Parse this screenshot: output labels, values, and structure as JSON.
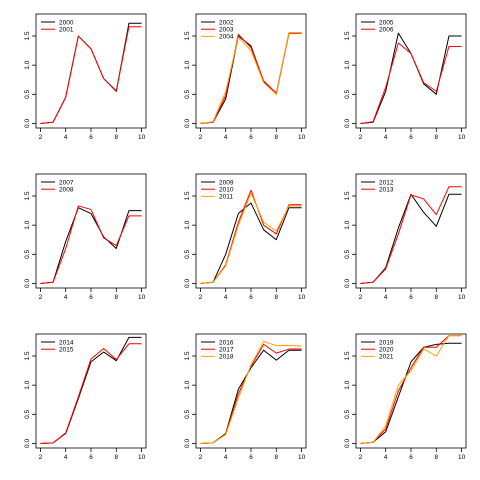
{
  "chart_data": [
    {
      "type": "line",
      "x": [
        2,
        3,
        4,
        5,
        6,
        7,
        8,
        9,
        10
      ],
      "xlim": [
        2,
        10
      ],
      "ylim": [
        0,
        1.8
      ],
      "xticks": [
        2,
        4,
        6,
        8,
        10
      ],
      "yticks": [
        0.0,
        0.5,
        1.0,
        1.5
      ],
      "xtick_labels": [
        "2",
        "4",
        "6",
        "8",
        "10"
      ],
      "ytick_labels": [
        "0.0",
        "0.5",
        "1.0",
        "1.5"
      ],
      "legend": "top-left",
      "grid": false,
      "series": [
        {
          "name": "2000",
          "color": "#000000",
          "values": [
            0,
            0.02,
            0.45,
            1.5,
            1.28,
            0.77,
            0.55,
            1.72,
            1.72
          ]
        },
        {
          "name": "2001",
          "color": "#ff0000",
          "values": [
            0,
            0.02,
            0.45,
            1.5,
            1.28,
            0.77,
            0.56,
            1.66,
            1.66
          ]
        }
      ]
    },
    {
      "type": "line",
      "x": [
        2,
        3,
        4,
        5,
        6,
        7,
        8,
        9,
        10
      ],
      "xlim": [
        2,
        10
      ],
      "ylim": [
        0,
        1.8
      ],
      "xticks": [
        2,
        4,
        6,
        8,
        10
      ],
      "yticks": [
        0.0,
        0.5,
        1.0,
        1.5
      ],
      "xtick_labels": [
        "2",
        "4",
        "6",
        "8",
        "10"
      ],
      "ytick_labels": [
        "0.0",
        "0.5",
        "1.0",
        "1.5"
      ],
      "legend": "top-left",
      "grid": false,
      "series": [
        {
          "name": "2002",
          "color": "#000000",
          "values": [
            0,
            0.02,
            0.42,
            1.5,
            1.33,
            0.72,
            0.5,
            1.55,
            1.55
          ]
        },
        {
          "name": "2003",
          "color": "#ff0000",
          "values": [
            0,
            0.02,
            0.48,
            1.53,
            1.3,
            0.73,
            0.52,
            1.55,
            1.55
          ]
        },
        {
          "name": "2004",
          "color": "#ffa500",
          "values": [
            0,
            0.03,
            0.55,
            1.48,
            1.25,
            0.7,
            0.5,
            1.56,
            1.56
          ]
        }
      ]
    },
    {
      "type": "line",
      "x": [
        2,
        3,
        4,
        5,
        6,
        7,
        8,
        9,
        10
      ],
      "xlim": [
        2,
        10
      ],
      "ylim": [
        0,
        1.8
      ],
      "xticks": [
        2,
        4,
        6,
        8,
        10
      ],
      "yticks": [
        0.0,
        0.5,
        1.0,
        1.5
      ],
      "xtick_labels": [
        "2",
        "4",
        "6",
        "8",
        "10"
      ],
      "ytick_labels": [
        "0.0",
        "0.5",
        "1.0",
        "1.5"
      ],
      "legend": "top-left",
      "grid": false,
      "series": [
        {
          "name": "2005",
          "color": "#000000",
          "values": [
            0,
            0.02,
            0.55,
            1.55,
            1.2,
            0.68,
            0.5,
            1.5,
            1.5
          ]
        },
        {
          "name": "2006",
          "color": "#ff0000",
          "values": [
            0,
            0.03,
            0.62,
            1.38,
            1.2,
            0.7,
            0.55,
            1.32,
            1.32
          ]
        }
      ]
    },
    {
      "type": "line",
      "x": [
        2,
        3,
        4,
        5,
        6,
        7,
        8,
        9,
        10
      ],
      "xlim": [
        2,
        10
      ],
      "ylim": [
        0,
        1.8
      ],
      "xticks": [
        2,
        4,
        6,
        8,
        10
      ],
      "yticks": [
        0.0,
        0.5,
        1.0,
        1.5
      ],
      "xtick_labels": [
        "2",
        "4",
        "6",
        "8",
        "10"
      ],
      "ytick_labels": [
        "0.0",
        "0.5",
        "1.0",
        "1.5"
      ],
      "legend": "top-left",
      "grid": false,
      "series": [
        {
          "name": "2007",
          "color": "#000000",
          "values": [
            0,
            0.02,
            0.72,
            1.3,
            1.2,
            0.8,
            0.6,
            1.25,
            1.25
          ]
        },
        {
          "name": "2008",
          "color": "#ff0000",
          "values": [
            0,
            0.02,
            0.6,
            1.33,
            1.27,
            0.78,
            0.65,
            1.16,
            1.16
          ]
        }
      ]
    },
    {
      "type": "line",
      "x": [
        2,
        3,
        4,
        5,
        6,
        7,
        8,
        9,
        10
      ],
      "xlim": [
        2,
        10
      ],
      "ylim": [
        0,
        1.8
      ],
      "xticks": [
        2,
        4,
        6,
        8,
        10
      ],
      "yticks": [
        0.0,
        0.5,
        1.0,
        1.5
      ],
      "xtick_labels": [
        "2",
        "4",
        "6",
        "8",
        "10"
      ],
      "ytick_labels": [
        "0.0",
        "0.5",
        "1.0",
        "1.5"
      ],
      "legend": "top-left",
      "grid": false,
      "series": [
        {
          "name": "2009",
          "color": "#000000",
          "values": [
            0,
            0.02,
            0.5,
            1.2,
            1.38,
            0.92,
            0.75,
            1.3,
            1.3
          ]
        },
        {
          "name": "2010",
          "color": "#ff0000",
          "values": [
            0,
            0.02,
            0.32,
            1.05,
            1.6,
            1.0,
            0.85,
            1.35,
            1.35
          ]
        },
        {
          "name": "2011",
          "color": "#ffa500",
          "values": [
            0,
            0.02,
            0.3,
            1.0,
            1.55,
            1.05,
            0.9,
            1.33,
            1.33
          ]
        }
      ]
    },
    {
      "type": "line",
      "x": [
        2,
        3,
        4,
        5,
        6,
        7,
        8,
        9,
        10
      ],
      "xlim": [
        2,
        10
      ],
      "ylim": [
        0,
        1.8
      ],
      "xticks": [
        2,
        4,
        6,
        8,
        10
      ],
      "yticks": [
        0.0,
        0.5,
        1.0,
        1.5
      ],
      "xtick_labels": [
        "2",
        "4",
        "6",
        "8",
        "10"
      ],
      "ytick_labels": [
        "0.0",
        "0.5",
        "1.0",
        "1.5"
      ],
      "legend": "top-left",
      "grid": false,
      "series": [
        {
          "name": "2012",
          "color": "#000000",
          "values": [
            0,
            0.02,
            0.27,
            0.95,
            1.53,
            1.22,
            0.98,
            1.53,
            1.53
          ]
        },
        {
          "name": "2013",
          "color": "#ff0000",
          "values": [
            0,
            0.02,
            0.25,
            0.85,
            1.52,
            1.45,
            1.18,
            1.66,
            1.66
          ]
        }
      ]
    },
    {
      "type": "line",
      "x": [
        2,
        3,
        4,
        5,
        6,
        7,
        8,
        9,
        10
      ],
      "xlim": [
        2,
        10
      ],
      "ylim": [
        0,
        1.8
      ],
      "xticks": [
        2,
        4,
        6,
        8,
        10
      ],
      "yticks": [
        0.0,
        0.5,
        1.0,
        1.5
      ],
      "xtick_labels": [
        "2",
        "4",
        "6",
        "8",
        "10"
      ],
      "ytick_labels": [
        "0.0",
        "0.5",
        "1.0",
        "1.5"
      ],
      "legend": "top-left",
      "grid": false,
      "series": [
        {
          "name": "2014",
          "color": "#000000",
          "values": [
            0,
            0.01,
            0.17,
            0.77,
            1.4,
            1.57,
            1.42,
            1.82,
            1.82
          ]
        },
        {
          "name": "2015",
          "color": "#ff0000",
          "values": [
            0,
            0.01,
            0.18,
            0.8,
            1.45,
            1.63,
            1.44,
            1.71,
            1.71
          ]
        }
      ]
    },
    {
      "type": "line",
      "x": [
        2,
        3,
        4,
        5,
        6,
        7,
        8,
        9,
        10
      ],
      "xlim": [
        2,
        10
      ],
      "ylim": [
        0,
        1.8
      ],
      "xticks": [
        2,
        4,
        6,
        8,
        10
      ],
      "yticks": [
        0.0,
        0.5,
        1.0,
        1.5
      ],
      "xtick_labels": [
        "2",
        "4",
        "6",
        "8",
        "10"
      ],
      "ytick_labels": [
        "0.0",
        "0.5",
        "1.0",
        "1.5"
      ],
      "legend": "top-left",
      "grid": false,
      "series": [
        {
          "name": "2016",
          "color": "#000000",
          "values": [
            0,
            0.01,
            0.17,
            0.93,
            1.3,
            1.6,
            1.43,
            1.6,
            1.6
          ]
        },
        {
          "name": "2017",
          "color": "#ff0000",
          "values": [
            0,
            0.01,
            0.16,
            0.85,
            1.33,
            1.7,
            1.55,
            1.62,
            1.62
          ]
        },
        {
          "name": "2018",
          "color": "#ffa500",
          "values": [
            0,
            0.01,
            0.15,
            0.78,
            1.35,
            1.75,
            1.68,
            1.68,
            1.67
          ]
        }
      ]
    },
    {
      "type": "line",
      "x": [
        2,
        3,
        4,
        5,
        6,
        7,
        8,
        9,
        10
      ],
      "xlim": [
        2,
        10
      ],
      "ylim": [
        0,
        1.8
      ],
      "xticks": [
        2,
        4,
        6,
        8,
        10
      ],
      "yticks": [
        0.0,
        0.5,
        1.0,
        1.5
      ],
      "xtick_labels": [
        "2",
        "4",
        "6",
        "8",
        "10"
      ],
      "ytick_labels": [
        "0.0",
        "0.5",
        "1.0",
        "1.5"
      ],
      "legend": "top-left",
      "grid": false,
      "series": [
        {
          "name": "2019",
          "color": "#000000",
          "values": [
            0,
            0.02,
            0.2,
            0.8,
            1.4,
            1.65,
            1.7,
            1.72,
            1.72
          ]
        },
        {
          "name": "2020",
          "color": "#ff0000",
          "values": [
            0,
            0.02,
            0.25,
            0.9,
            1.3,
            1.65,
            1.65,
            1.85,
            1.85
          ]
        },
        {
          "name": "2021",
          "color": "#ffa500",
          "values": [
            0,
            0.02,
            0.3,
            1.0,
            1.25,
            1.62,
            1.5,
            1.85,
            1.85
          ]
        }
      ]
    }
  ]
}
